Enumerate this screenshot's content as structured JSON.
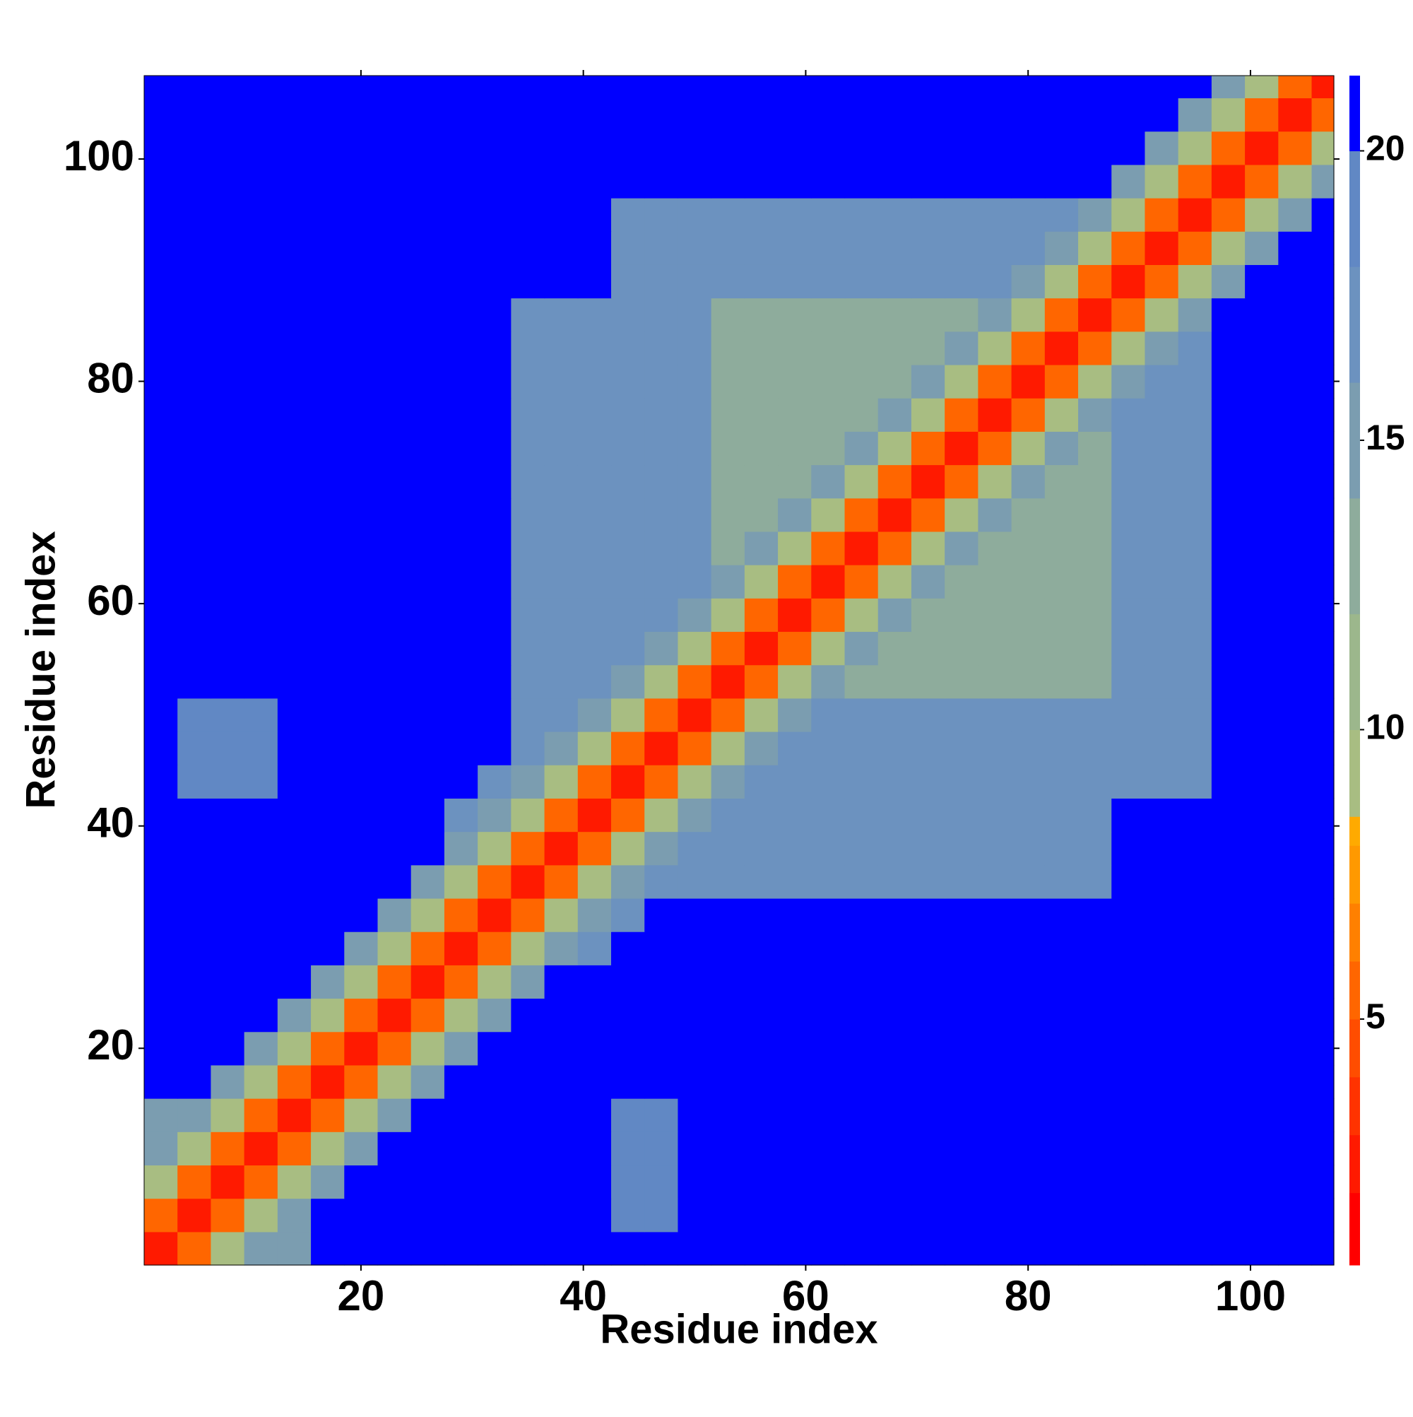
{
  "chart_data": {
    "type": "heatmap",
    "xlabel": "Residue index",
    "ylabel": "Residue index",
    "xlim": [
      0.5,
      107.5
    ],
    "ylim": [
      0.5,
      107.5
    ],
    "xticks": [
      20,
      40,
      60,
      80,
      100
    ],
    "yticks": [
      20,
      40,
      60,
      80,
      100
    ],
    "bins": [
      0.5,
      3.5,
      6.5,
      9.5,
      12.5,
      15.5,
      18.5,
      21.5,
      24.5,
      27.5,
      30.5,
      33.5,
      36.5,
      39.5,
      42.5,
      45.5,
      48.5,
      51.5,
      54.5,
      57.5,
      60.5,
      63.5,
      66.5,
      69.5,
      72.5,
      75.5,
      78.5,
      81.5,
      84.5,
      87.5,
      90.5,
      93.5,
      96.5,
      99.5,
      102.5,
      105.5,
      107.5
    ],
    "z": [
      [
        2,
        5,
        9,
        14,
        15,
        25,
        25,
        25,
        25,
        25,
        25,
        25,
        25,
        25,
        25,
        25,
        25,
        25,
        25,
        25,
        25,
        25,
        25,
        25,
        25,
        25,
        25,
        25,
        25,
        25,
        25,
        25,
        25,
        25,
        25,
        25
      ],
      [
        5,
        2,
        5,
        9,
        14,
        25,
        25,
        25,
        25,
        25,
        25,
        25,
        25,
        25,
        18,
        18,
        25,
        25,
        25,
        25,
        25,
        25,
        25,
        25,
        25,
        25,
        25,
        25,
        25,
        25,
        25,
        25,
        25,
        25,
        25,
        25
      ],
      [
        9,
        5,
        2,
        5,
        9,
        14,
        25,
        25,
        25,
        25,
        25,
        25,
        25,
        25,
        18,
        18,
        25,
        25,
        25,
        25,
        25,
        25,
        25,
        25,
        25,
        25,
        25,
        25,
        25,
        25,
        25,
        25,
        25,
        25,
        25,
        25
      ],
      [
        14,
        9,
        5,
        2,
        5,
        9,
        14,
        25,
        25,
        25,
        25,
        25,
        25,
        25,
        18,
        18,
        25,
        25,
        25,
        25,
        25,
        25,
        25,
        25,
        25,
        25,
        25,
        25,
        25,
        25,
        25,
        25,
        25,
        25,
        25,
        25
      ],
      [
        15,
        14,
        9,
        5,
        2,
        5,
        9,
        14,
        25,
        25,
        25,
        25,
        25,
        25,
        18,
        18,
        25,
        25,
        25,
        25,
        25,
        25,
        25,
        25,
        25,
        25,
        25,
        25,
        25,
        25,
        25,
        25,
        25,
        25,
        25,
        25
      ],
      [
        25,
        25,
        14,
        9,
        5,
        2,
        5,
        9,
        14,
        25,
        25,
        25,
        25,
        25,
        25,
        25,
        25,
        25,
        25,
        25,
        25,
        25,
        25,
        25,
        25,
        25,
        25,
        25,
        25,
        25,
        25,
        25,
        25,
        25,
        25,
        25
      ],
      [
        25,
        25,
        25,
        14,
        9,
        5,
        2,
        5,
        9,
        14,
        25,
        25,
        25,
        25,
        25,
        25,
        25,
        25,
        25,
        25,
        25,
        25,
        25,
        25,
        25,
        25,
        25,
        25,
        25,
        25,
        25,
        25,
        25,
        25,
        25,
        25
      ],
      [
        25,
        25,
        25,
        25,
        14,
        9,
        5,
        2,
        5,
        9,
        14,
        25,
        25,
        25,
        25,
        25,
        25,
        25,
        25,
        25,
        25,
        25,
        25,
        25,
        25,
        25,
        25,
        25,
        25,
        25,
        25,
        25,
        25,
        25,
        25,
        25
      ],
      [
        25,
        25,
        25,
        25,
        25,
        14,
        9,
        5,
        2,
        5,
        9,
        14,
        25,
        25,
        25,
        25,
        25,
        25,
        25,
        25,
        25,
        25,
        25,
        25,
        25,
        25,
        25,
        25,
        25,
        25,
        25,
        25,
        25,
        25,
        25,
        25
      ],
      [
        25,
        25,
        25,
        25,
        25,
        25,
        14,
        9,
        5,
        2,
        5,
        9,
        14,
        16,
        25,
        25,
        25,
        25,
        25,
        25,
        25,
        25,
        25,
        25,
        25,
        25,
        25,
        25,
        25,
        25,
        25,
        25,
        25,
        25,
        25,
        25
      ],
      [
        25,
        25,
        25,
        25,
        25,
        25,
        25,
        14,
        9,
        5,
        2,
        5,
        9,
        14,
        16,
        25,
        25,
        25,
        25,
        25,
        25,
        25,
        25,
        25,
        25,
        25,
        25,
        25,
        25,
        25,
        25,
        25,
        25,
        25,
        25,
        25
      ],
      [
        25,
        25,
        25,
        25,
        25,
        25,
        25,
        25,
        14,
        9,
        5,
        2,
        5,
        9,
        14,
        16,
        16,
        16,
        16,
        16,
        16,
        16,
        16,
        16,
        16,
        16,
        16,
        16,
        16,
        25,
        25,
        25,
        25,
        25,
        25,
        25
      ],
      [
        25,
        25,
        25,
        25,
        25,
        25,
        25,
        25,
        25,
        14,
        9,
        5,
        2,
        5,
        9,
        14,
        16,
        16,
        16,
        16,
        16,
        16,
        16,
        16,
        16,
        16,
        16,
        16,
        16,
        25,
        25,
        25,
        25,
        25,
        25,
        25
      ],
      [
        25,
        25,
        25,
        25,
        25,
        25,
        25,
        25,
        25,
        16,
        14,
        9,
        5,
        2,
        5,
        9,
        14,
        16,
        16,
        16,
        16,
        16,
        16,
        16,
        16,
        16,
        16,
        16,
        16,
        25,
        25,
        25,
        25,
        25,
        25,
        25
      ],
      [
        25,
        18,
        18,
        18,
        25,
        25,
        25,
        25,
        25,
        25,
        16,
        14,
        9,
        5,
        2,
        5,
        9,
        14,
        16,
        16,
        16,
        16,
        16,
        16,
        16,
        16,
        16,
        16,
        16,
        16,
        16,
        16,
        25,
        25,
        25,
        25
      ],
      [
        25,
        18,
        18,
        18,
        25,
        25,
        25,
        25,
        25,
        25,
        25,
        16,
        14,
        9,
        5,
        2,
        5,
        9,
        14,
        16,
        16,
        16,
        16,
        16,
        16,
        16,
        16,
        16,
        16,
        16,
        16,
        16,
        25,
        25,
        25,
        25
      ],
      [
        25,
        18,
        18,
        18,
        25,
        25,
        25,
        25,
        25,
        25,
        25,
        16,
        16,
        14,
        9,
        5,
        2,
        5,
        9,
        14,
        16,
        16,
        16,
        16,
        16,
        16,
        16,
        16,
        16,
        16,
        16,
        16,
        25,
        25,
        25,
        25
      ],
      [
        25,
        25,
        25,
        25,
        25,
        25,
        25,
        25,
        25,
        25,
        25,
        16,
        16,
        16,
        14,
        9,
        5,
        2,
        5,
        9,
        14,
        12,
        12,
        12,
        12,
        12,
        12,
        12,
        12,
        16,
        16,
        16,
        25,
        25,
        25,
        25
      ],
      [
        25,
        25,
        25,
        25,
        25,
        25,
        25,
        25,
        25,
        25,
        25,
        16,
        16,
        16,
        16,
        14,
        9,
        5,
        2,
        5,
        9,
        14,
        12,
        12,
        12,
        12,
        12,
        12,
        12,
        16,
        16,
        16,
        25,
        25,
        25,
        25
      ],
      [
        25,
        25,
        25,
        25,
        25,
        25,
        25,
        25,
        25,
        25,
        25,
        16,
        16,
        16,
        16,
        16,
        14,
        9,
        5,
        2,
        5,
        9,
        14,
        12,
        12,
        12,
        12,
        12,
        12,
        16,
        16,
        16,
        25,
        25,
        25,
        25
      ],
      [
        25,
        25,
        25,
        25,
        25,
        25,
        25,
        25,
        25,
        25,
        25,
        16,
        16,
        16,
        16,
        16,
        16,
        14,
        9,
        5,
        2,
        5,
        9,
        14,
        12,
        12,
        12,
        12,
        12,
        16,
        16,
        16,
        25,
        25,
        25,
        25
      ],
      [
        25,
        25,
        25,
        25,
        25,
        25,
        25,
        25,
        25,
        25,
        25,
        16,
        16,
        16,
        16,
        16,
        16,
        12,
        14,
        9,
        5,
        2,
        5,
        9,
        14,
        12,
        12,
        12,
        12,
        16,
        16,
        16,
        25,
        25,
        25,
        25
      ],
      [
        25,
        25,
        25,
        25,
        25,
        25,
        25,
        25,
        25,
        25,
        25,
        16,
        16,
        16,
        16,
        16,
        16,
        12,
        12,
        14,
        9,
        5,
        2,
        5,
        9,
        14,
        12,
        12,
        12,
        16,
        16,
        16,
        25,
        25,
        25,
        25
      ],
      [
        25,
        25,
        25,
        25,
        25,
        25,
        25,
        25,
        25,
        25,
        25,
        16,
        16,
        16,
        16,
        16,
        16,
        12,
        12,
        12,
        14,
        9,
        5,
        2,
        5,
        9,
        14,
        12,
        12,
        16,
        16,
        16,
        25,
        25,
        25,
        25
      ],
      [
        25,
        25,
        25,
        25,
        25,
        25,
        25,
        25,
        25,
        25,
        25,
        16,
        16,
        16,
        16,
        16,
        16,
        12,
        12,
        12,
        12,
        14,
        9,
        5,
        2,
        5,
        9,
        14,
        12,
        16,
        16,
        16,
        25,
        25,
        25,
        25
      ],
      [
        25,
        25,
        25,
        25,
        25,
        25,
        25,
        25,
        25,
        25,
        25,
        16,
        16,
        16,
        16,
        16,
        16,
        12,
        12,
        12,
        12,
        12,
        14,
        9,
        5,
        2,
        5,
        9,
        14,
        16,
        16,
        16,
        25,
        25,
        25,
        25
      ],
      [
        25,
        25,
        25,
        25,
        25,
        25,
        25,
        25,
        25,
        25,
        25,
        16,
        16,
        16,
        16,
        16,
        16,
        12,
        12,
        12,
        12,
        12,
        12,
        14,
        9,
        5,
        2,
        5,
        9,
        14,
        16,
        16,
        25,
        25,
        25,
        25
      ],
      [
        25,
        25,
        25,
        25,
        25,
        25,
        25,
        25,
        25,
        25,
        25,
        16,
        16,
        16,
        16,
        16,
        16,
        12,
        12,
        12,
        12,
        12,
        12,
        12,
        14,
        9,
        5,
        2,
        5,
        9,
        14,
        16,
        25,
        25,
        25,
        25
      ],
      [
        25,
        25,
        25,
        25,
        25,
        25,
        25,
        25,
        25,
        25,
        25,
        16,
        16,
        16,
        16,
        16,
        16,
        12,
        12,
        12,
        12,
        12,
        12,
        12,
        12,
        14,
        9,
        5,
        2,
        5,
        9,
        14,
        25,
        25,
        25,
        25
      ],
      [
        25,
        25,
        25,
        25,
        25,
        25,
        25,
        25,
        25,
        25,
        25,
        25,
        25,
        25,
        16,
        16,
        16,
        16,
        16,
        16,
        16,
        16,
        16,
        16,
        16,
        16,
        14,
        9,
        5,
        2,
        5,
        9,
        14,
        25,
        25,
        25
      ],
      [
        25,
        25,
        25,
        25,
        25,
        25,
        25,
        25,
        25,
        25,
        25,
        25,
        25,
        25,
        16,
        16,
        16,
        16,
        16,
        16,
        16,
        16,
        16,
        16,
        16,
        16,
        16,
        14,
        9,
        5,
        2,
        5,
        9,
        14,
        25,
        25
      ],
      [
        25,
        25,
        25,
        25,
        25,
        25,
        25,
        25,
        25,
        25,
        25,
        25,
        25,
        25,
        16,
        16,
        16,
        16,
        16,
        16,
        16,
        16,
        16,
        16,
        16,
        16,
        16,
        16,
        14,
        9,
        5,
        2,
        5,
        9,
        14,
        25
      ],
      [
        25,
        25,
        25,
        25,
        25,
        25,
        25,
        25,
        25,
        25,
        25,
        25,
        25,
        25,
        25,
        25,
        25,
        25,
        25,
        25,
        25,
        25,
        25,
        25,
        25,
        25,
        25,
        25,
        25,
        14,
        9,
        5,
        2,
        5,
        9,
        14
      ],
      [
        25,
        25,
        25,
        25,
        25,
        25,
        25,
        25,
        25,
        25,
        25,
        25,
        25,
        25,
        25,
        25,
        25,
        25,
        25,
        25,
        25,
        25,
        25,
        25,
        25,
        25,
        25,
        25,
        25,
        25,
        14,
        9,
        5,
        2,
        5,
        9
      ],
      [
        25,
        25,
        25,
        25,
        25,
        25,
        25,
        25,
        25,
        25,
        25,
        25,
        25,
        25,
        25,
        25,
        25,
        25,
        25,
        25,
        25,
        25,
        25,
        25,
        25,
        25,
        25,
        25,
        25,
        25,
        25,
        14,
        9,
        5,
        2,
        5
      ],
      [
        25,
        25,
        25,
        25,
        25,
        25,
        25,
        25,
        25,
        25,
        25,
        25,
        25,
        25,
        25,
        25,
        25,
        25,
        25,
        25,
        25,
        25,
        25,
        25,
        25,
        25,
        25,
        25,
        25,
        25,
        25,
        25,
        14,
        9,
        5,
        2
      ]
    ],
    "colorbar": {
      "levels": [
        0.75,
        2,
        3,
        4,
        5,
        6,
        7,
        8,
        8.5,
        10,
        12,
        14,
        16,
        18,
        20,
        21.3
      ],
      "colors": [
        "#ff0000",
        "#ff1a00",
        "#ff3300",
        "#ff4d00",
        "#ff6600",
        "#ff8000",
        "#ff9900",
        "#ffaa00",
        "#a8bd82",
        "#9cb78c",
        "#8eac9c",
        "#7b9db0",
        "#6c92bf",
        "#6188c4",
        "#0000ff"
      ],
      "ticks": [
        5,
        10,
        15,
        20
      ]
    }
  }
}
